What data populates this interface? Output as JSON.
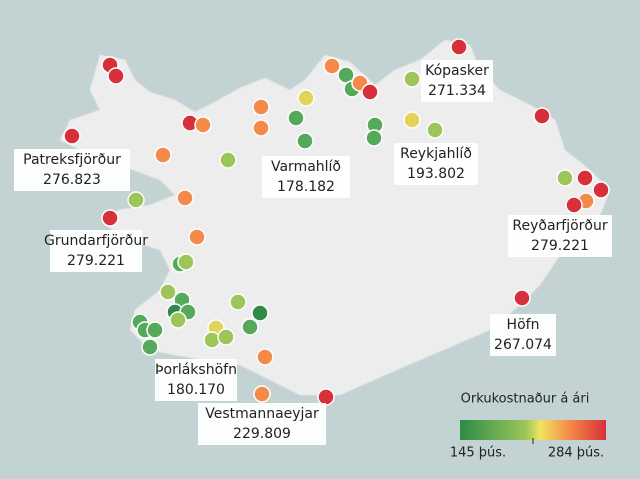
{
  "map": {
    "labels": [
      {
        "name": "Patreksfjörður",
        "value": "276.823"
      },
      {
        "name": "Grundarfjörður",
        "value": "279.221"
      },
      {
        "name": "Varmahlíð",
        "value": "178.182"
      },
      {
        "name": "Kópasker",
        "value": "271.334"
      },
      {
        "name": "Reykjahlíð",
        "value": "193.802"
      },
      {
        "name": "Reyðarfjörður",
        "value": "279.221"
      },
      {
        "name": "Höfn",
        "value": "267.074"
      },
      {
        "name": "Þorlákshöfn",
        "value": "180.170"
      },
      {
        "name": "Vestmannaeyjar",
        "value": "229.809"
      }
    ],
    "legend": {
      "title": "Orkukostnaður á ári",
      "min_label": "145 þús.",
      "max_label": "284 þús."
    }
  }
}
